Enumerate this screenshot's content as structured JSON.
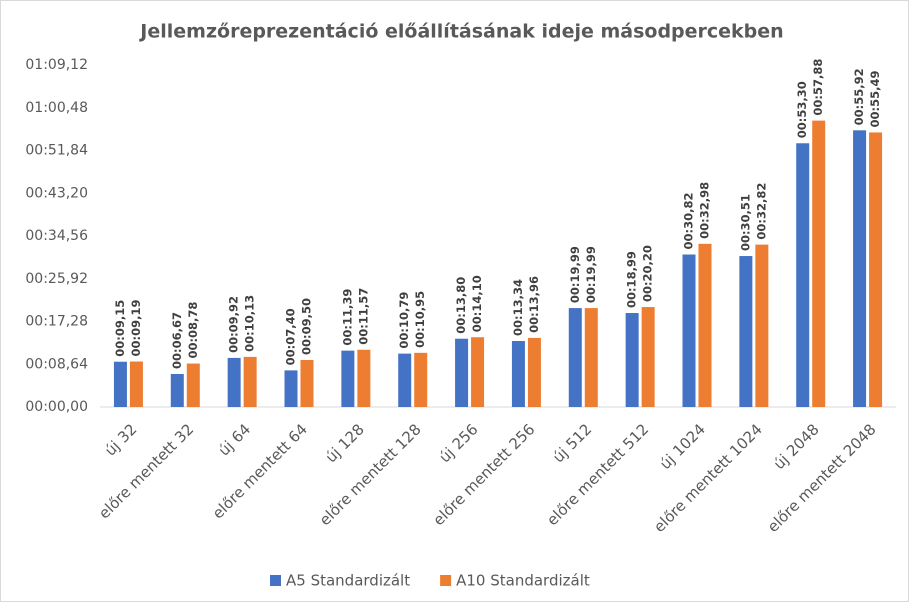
{
  "chart_data": {
    "type": "bar",
    "title": "Jellemzőreprezentáció előállításának ideje másodpercekben",
    "categories": [
      "új 32",
      "előre mentett 32",
      "új 64",
      "előre mentett 64",
      "új 128",
      "előre mentett 128",
      "új 256",
      "előre mentett 256",
      "új 512",
      "előre mentett 512",
      "új 1024",
      "előre mentett 1024",
      "új 2048",
      "előre mentett 2048"
    ],
    "series": [
      {
        "name": "A5 Standardizált",
        "color": "#4472c4",
        "values": [
          9.15,
          6.67,
          9.92,
          7.4,
          11.39,
          10.79,
          13.8,
          13.34,
          19.99,
          18.99,
          30.82,
          30.51,
          53.3,
          55.92
        ],
        "value_labels": [
          "00:09,15",
          "00:06,67",
          "00:09,92",
          "00:07,40",
          "00:11,39",
          "00:10,79",
          "00:13,80",
          "00:13,34",
          "00:19,99",
          "00:18,99",
          "00:30,82",
          "00:30,51",
          "00:53,30",
          "00:55,92"
        ]
      },
      {
        "name": "A10 Standardizált",
        "color": "#ed7d31",
        "values": [
          9.19,
          8.78,
          10.13,
          9.5,
          11.57,
          10.95,
          14.1,
          13.96,
          19.99,
          20.2,
          32.98,
          32.82,
          57.88,
          55.49
        ],
        "value_labels": [
          "00:09,19",
          "00:08,78",
          "00:10,13",
          "00:09,50",
          "00:11,57",
          "00:10,95",
          "00:14,10",
          "00:13,96",
          "00:19,99",
          "00:20,20",
          "00:32,98",
          "00:32,82",
          "00:57,88",
          "00:55,49"
        ]
      }
    ],
    "ylim": [
      0,
      69.12
    ],
    "yticks": [
      {
        "value": 0,
        "label": "00:00,00"
      },
      {
        "value": 8.64,
        "label": "00:08,64"
      },
      {
        "value": 17.28,
        "label": "00:17,28"
      },
      {
        "value": 25.92,
        "label": "00:25,92"
      },
      {
        "value": 34.56,
        "label": "00:34,56"
      },
      {
        "value": 43.2,
        "label": "00:43,20"
      },
      {
        "value": 51.84,
        "label": "00:51,84"
      },
      {
        "value": 60.48,
        "label": "01:00,48"
      },
      {
        "value": 69.12,
        "label": "01:09,12"
      }
    ],
    "grid": false,
    "legend": "bottom"
  }
}
